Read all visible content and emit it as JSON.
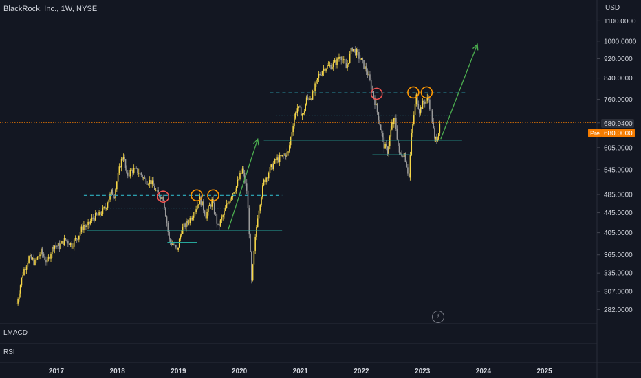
{
  "header": {
    "title": "BlackRock, Inc., 1W, NYSE",
    "currency": "USD"
  },
  "price_badges": {
    "last_price": "680.9400",
    "pre_label": "Pre",
    "pre_price": "680.0000"
  },
  "panes": {
    "indicator_1": "LMACD",
    "indicator_2": "RSI"
  },
  "colors": {
    "background": "#131722",
    "candle": "#f5d547",
    "support_line": "#26a69a",
    "resistance_dashed": "#2fb3c2",
    "arrow": "#4caf50",
    "circle_red": "#ef5350",
    "circle_orange": "#ff9800",
    "last_price_badge": "#2a2e39",
    "pre_badge": "#f57c00",
    "last_price_line": "#f57c00"
  },
  "chart_data": {
    "type": "candlestick",
    "title": "BlackRock, Inc., 1W, NYSE",
    "y_scale": "log",
    "ylim": [
      268,
      1160
    ],
    "xlim": [
      2016.35,
      2025.75
    ],
    "y_ticks": [
      "1100.0000",
      "1000.0000",
      "920.0000",
      "840.0000",
      "760.0000",
      "680.0000",
      "605.0000",
      "545.0000",
      "485.0000",
      "445.0000",
      "405.0000",
      "365.0000",
      "335.0000",
      "307.0000",
      "282.0000"
    ],
    "x_ticks": [
      "2017",
      "2018",
      "2019",
      "2020",
      "2021",
      "2022",
      "2023",
      "2024",
      "2025"
    ],
    "series": [
      {
        "values": [
          [
            2016.35,
            290
          ],
          [
            2016.45,
            335
          ],
          [
            2016.55,
            360
          ],
          [
            2016.65,
            352
          ],
          [
            2016.75,
            370
          ],
          [
            2016.85,
            352
          ],
          [
            2016.95,
            382
          ],
          [
            2017.05,
            380
          ],
          [
            2017.15,
            392
          ],
          [
            2017.25,
            383
          ],
          [
            2017.35,
            398
          ],
          [
            2017.45,
            420
          ],
          [
            2017.5,
            415
          ],
          [
            2017.6,
            435
          ],
          [
            2017.7,
            440
          ],
          [
            2017.8,
            455
          ],
          [
            2017.9,
            490
          ],
          [
            2017.95,
            485
          ],
          [
            2018.05,
            560
          ],
          [
            2018.1,
            585
          ],
          [
            2018.15,
            530
          ],
          [
            2018.25,
            545
          ],
          [
            2018.35,
            540
          ],
          [
            2018.45,
            520
          ],
          [
            2018.55,
            515
          ],
          [
            2018.65,
            488
          ],
          [
            2018.75,
            478
          ],
          [
            2018.85,
            390
          ],
          [
            2018.92,
            383
          ],
          [
            2018.98,
            370
          ],
          [
            2019.05,
            410
          ],
          [
            2019.15,
            425
          ],
          [
            2019.25,
            445
          ],
          [
            2019.35,
            475
          ],
          [
            2019.45,
            440
          ],
          [
            2019.55,
            470
          ],
          [
            2019.65,
            415
          ],
          [
            2019.75,
            445
          ],
          [
            2019.85,
            480
          ],
          [
            2019.95,
            505
          ],
          [
            2020.05,
            545
          ],
          [
            2020.12,
            495
          ],
          [
            2020.2,
            320
          ],
          [
            2020.3,
            440
          ],
          [
            2020.4,
            515
          ],
          [
            2020.5,
            545
          ],
          [
            2020.6,
            570
          ],
          [
            2020.7,
            580
          ],
          [
            2020.8,
            590
          ],
          [
            2020.9,
            700
          ],
          [
            2020.95,
            730
          ],
          [
            2021.05,
            705
          ],
          [
            2021.1,
            760
          ],
          [
            2021.2,
            775
          ],
          [
            2021.3,
            850
          ],
          [
            2021.4,
            885
          ],
          [
            2021.5,
            890
          ],
          [
            2021.6,
            910
          ],
          [
            2021.65,
            940
          ],
          [
            2021.75,
            880
          ],
          [
            2021.85,
            970
          ],
          [
            2021.92,
            945
          ],
          [
            2022.0,
            910
          ],
          [
            2022.1,
            860
          ],
          [
            2022.2,
            770
          ],
          [
            2022.3,
            680
          ],
          [
            2022.37,
            610
          ],
          [
            2022.43,
            595
          ],
          [
            2022.5,
            675
          ],
          [
            2022.55,
            690
          ],
          [
            2022.62,
            585
          ],
          [
            2022.7,
            590
          ],
          [
            2022.78,
            525
          ],
          [
            2022.82,
            640
          ],
          [
            2022.9,
            770
          ],
          [
            2022.95,
            720
          ],
          [
            2023.02,
            750
          ],
          [
            2023.1,
            760
          ],
          [
            2023.16,
            690
          ],
          [
            2023.2,
            625
          ],
          [
            2023.25,
            640
          ],
          [
            2023.3,
            680
          ]
        ]
      }
    ],
    "last_price": 680.94,
    "pre_market_price": 680.0
  }
}
